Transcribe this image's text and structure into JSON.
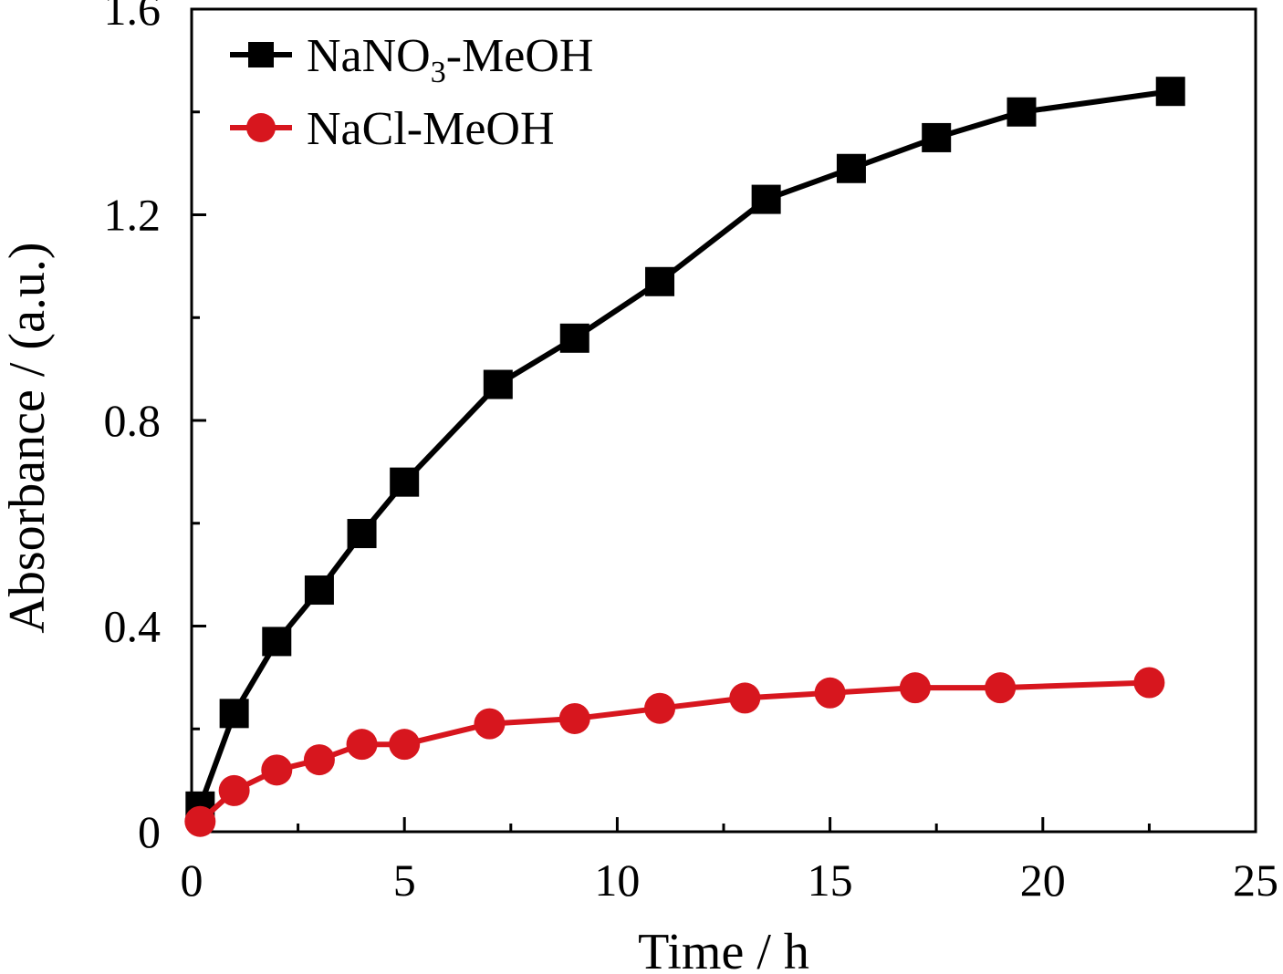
{
  "chart_data": {
    "type": "line",
    "xlabel": "Time / h",
    "ylabel": "Absorbance / (a.u.)",
    "xlim": [
      0,
      25
    ],
    "ylim": [
      0,
      1.6
    ],
    "xticks": [
      0,
      5,
      10,
      15,
      20,
      25
    ],
    "xtick_labels": [
      "0",
      "5",
      "10",
      "15",
      "20",
      "25"
    ],
    "yticks": [
      0,
      0.4,
      0.8,
      1.2,
      1.6
    ],
    "ytick_labels": [
      "0",
      "0.4",
      "0.8",
      "1.2",
      "1.6"
    ],
    "grid": false,
    "legend_position": "top-left",
    "series": [
      {
        "name": "NaNO3-MeOH",
        "legend_parts": {
          "base": "NaNO",
          "sub": "3",
          "suffix": "-MeOH"
        },
        "color": "#000000",
        "marker": "square",
        "x": [
          0.2,
          1,
          2,
          3,
          4,
          5,
          7.2,
          9,
          11,
          13.5,
          15.5,
          17.5,
          19.5,
          23
        ],
        "y": [
          0.05,
          0.23,
          0.37,
          0.47,
          0.58,
          0.68,
          0.87,
          0.96,
          1.07,
          1.23,
          1.29,
          1.35,
          1.4,
          1.44
        ]
      },
      {
        "name": "NaCl-MeOH",
        "color": "#d7161e",
        "marker": "circle",
        "x": [
          0.2,
          1,
          2,
          3,
          4,
          5,
          7,
          9,
          11,
          13,
          15,
          17,
          19,
          22.5
        ],
        "y": [
          0.02,
          0.08,
          0.12,
          0.14,
          0.17,
          0.17,
          0.21,
          0.22,
          0.24,
          0.26,
          0.27,
          0.28,
          0.28,
          0.29
        ]
      }
    ]
  }
}
